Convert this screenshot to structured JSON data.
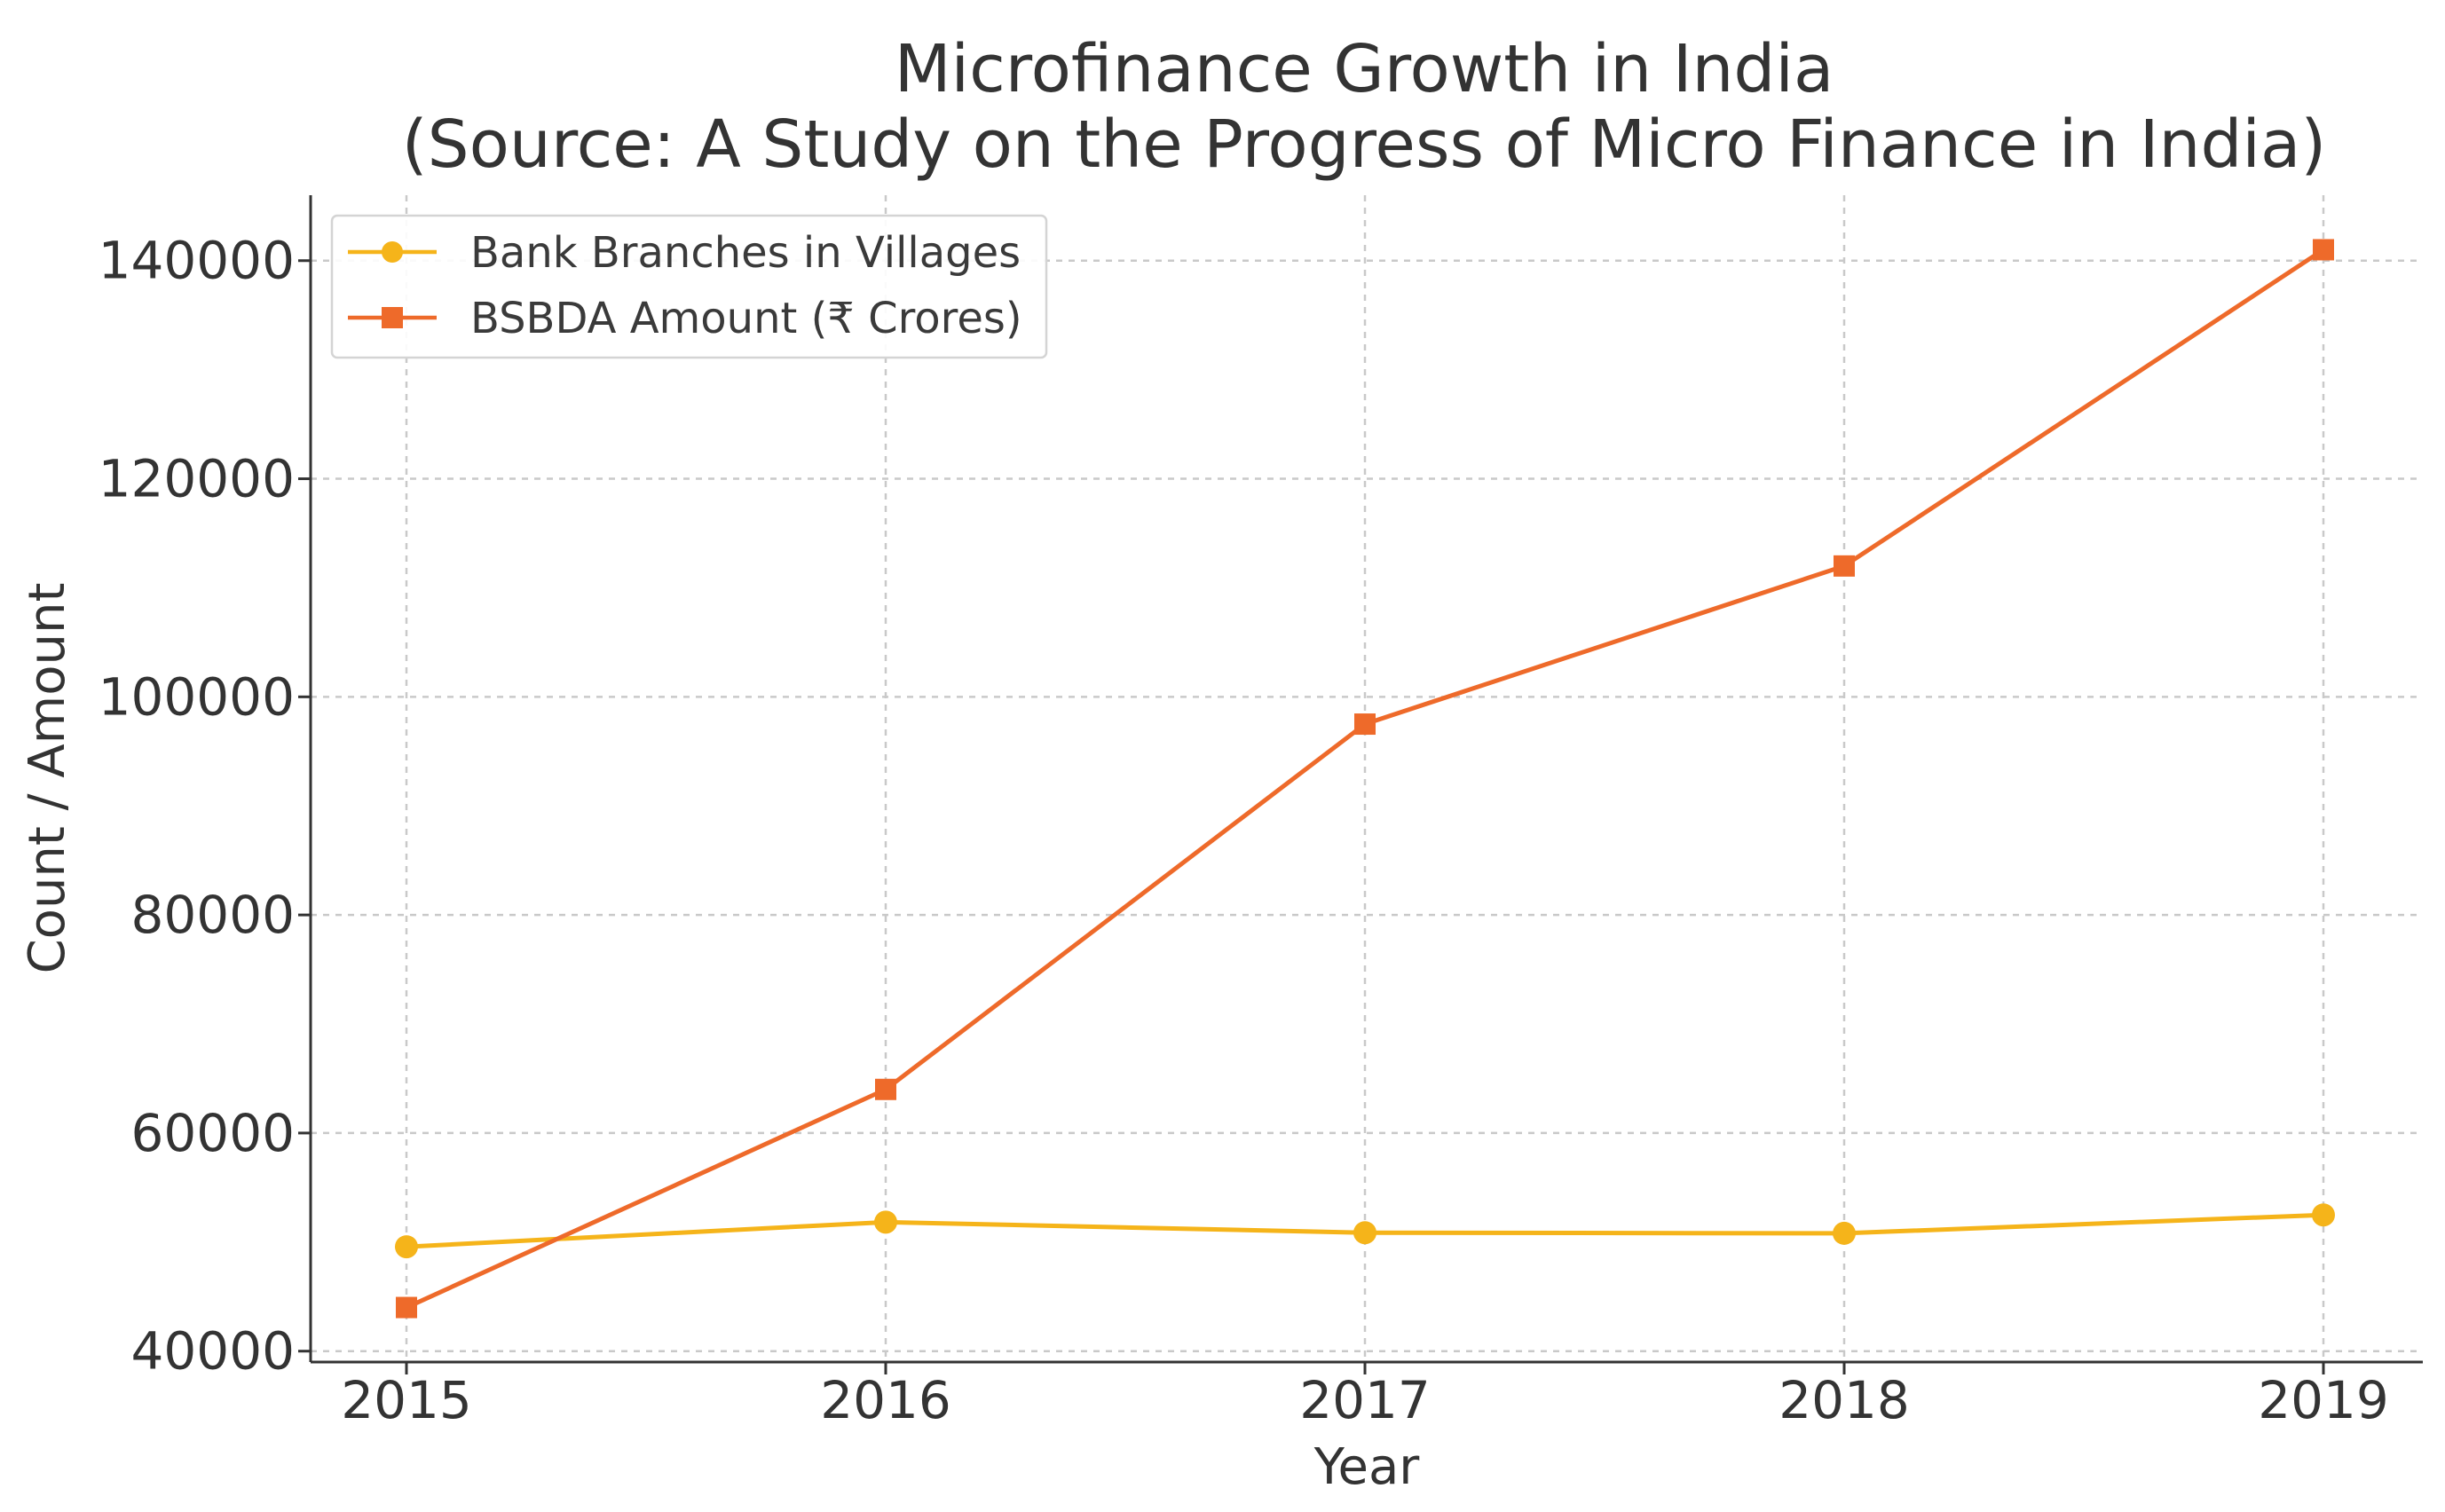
{
  "chart_data": {
    "type": "line",
    "title": "Microfinance Growth in India",
    "subtitle": "(Source: A Study on the Progress of Micro Finance in India)",
    "xlabel": "Year",
    "ylabel": "Count / Amount",
    "categories": [
      "2015",
      "2016",
      "2017",
      "2018",
      "2019"
    ],
    "yticks": [
      "40000",
      "60000",
      "80000",
      "100000",
      "120000",
      "140000"
    ],
    "ytick_values": [
      40000,
      60000,
      80000,
      100000,
      120000,
      140000
    ],
    "ylim": [
      39000,
      146000
    ],
    "grid": true,
    "legend_position": "top-left",
    "series": [
      {
        "name": "Bank Branches in Villages",
        "marker": "circle",
        "color": "#F5B41A",
        "values": [
          49571,
          51830,
          50860,
          50805,
          52489
        ]
      },
      {
        "name": "BSBDA Amount (₹ Crores)",
        "marker": "square",
        "color": "#EE6A2A",
        "values": [
          44000,
          64000,
          97500,
          112000,
          141000
        ]
      }
    ]
  }
}
